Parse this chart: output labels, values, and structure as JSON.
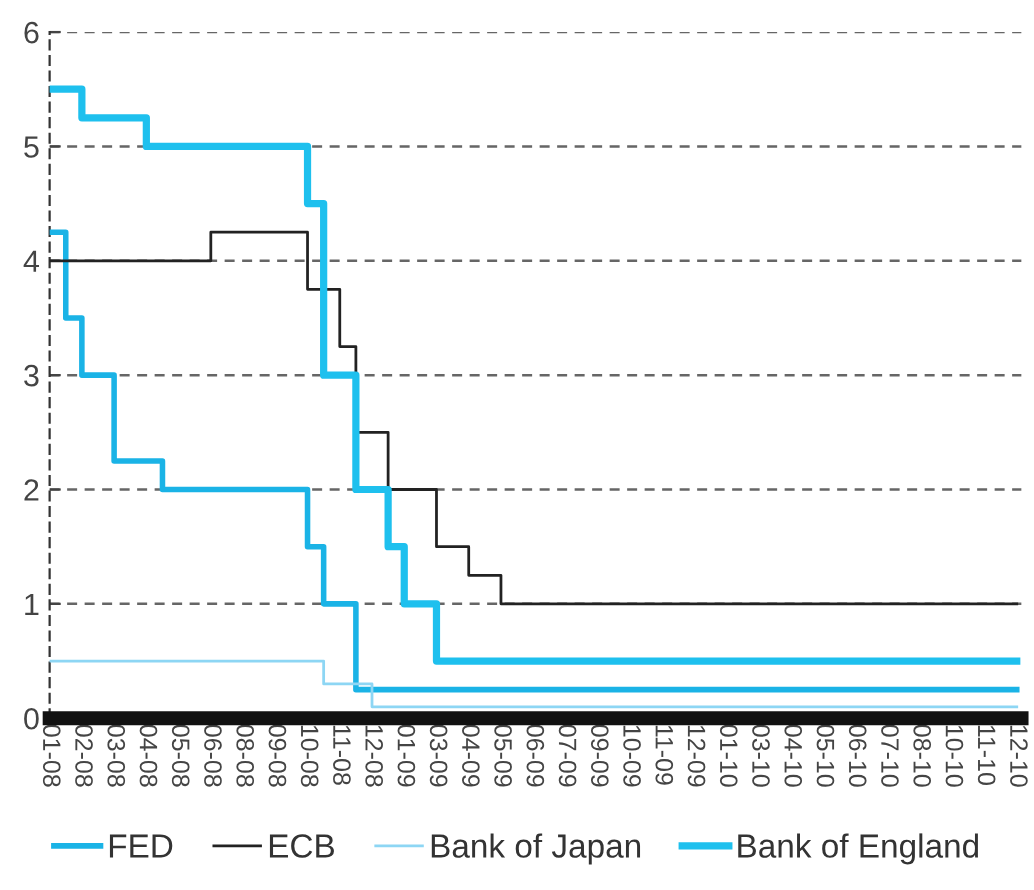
{
  "chart_data": {
    "type": "step",
    "categories": [
      "01-08",
      null,
      "02-08",
      null,
      "03-08",
      null,
      "04-08",
      null,
      "05-08",
      null,
      "06-08",
      null,
      "08-08",
      null,
      "09-08",
      null,
      "10-08",
      null,
      "11-08",
      null,
      "12-08",
      null,
      "01-09",
      null,
      "03-09",
      null,
      "04-09",
      null,
      "05-09",
      null,
      "06-09",
      null,
      "07-09",
      null,
      "09-09",
      null,
      "10-09",
      null,
      "11-09",
      null,
      "12-09",
      null,
      "01-10",
      null,
      "03-10",
      null,
      "04-10",
      null,
      "05-10",
      null,
      "06-10",
      null,
      "07-10",
      null,
      "08-10",
      null,
      "10-10",
      null,
      "11-10",
      null,
      "12-10"
    ],
    "series": [
      {
        "name": "FED",
        "color": "#1ab3e6",
        "values": [
          4.25,
          3.5,
          3.0,
          3.0,
          2.25,
          2.25,
          2.25,
          2.0,
          2.0,
          2.0,
          2.0,
          2.0,
          2.0,
          2.0,
          2.0,
          2.0,
          1.5,
          1.0,
          1.0,
          0.25,
          0.25,
          0.25,
          0.25,
          0.25,
          0.25,
          0.25,
          0.25,
          0.25,
          0.25,
          0.25,
          0.25,
          0.25,
          0.25,
          0.25,
          0.25,
          0.25,
          0.25,
          0.25,
          0.25,
          0.25,
          0.25,
          0.25,
          0.25,
          0.25,
          0.25,
          0.25,
          0.25,
          0.25,
          0.25,
          0.25,
          0.25,
          0.25,
          0.25,
          0.25,
          0.25,
          0.25,
          0.25,
          0.25,
          0.25,
          0.25,
          0.25
        ]
      },
      {
        "name": "ECB",
        "color": "#222222",
        "values": [
          4.0,
          4.0,
          4.0,
          4.0,
          4.0,
          4.0,
          4.0,
          4.0,
          4.0,
          4.0,
          4.25,
          4.25,
          4.25,
          4.25,
          4.25,
          4.25,
          3.75,
          3.75,
          3.25,
          2.5,
          2.5,
          2.0,
          2.0,
          2.0,
          1.5,
          1.5,
          1.25,
          1.25,
          1.0,
          1.0,
          1.0,
          1.0,
          1.0,
          1.0,
          1.0,
          1.0,
          1.0,
          1.0,
          1.0,
          1.0,
          1.0,
          1.0,
          1.0,
          1.0,
          1.0,
          1.0,
          1.0,
          1.0,
          1.0,
          1.0,
          1.0,
          1.0,
          1.0,
          1.0,
          1.0,
          1.0,
          1.0,
          1.0,
          1.0,
          1.0,
          1.0
        ]
      },
      {
        "name": "Bank of Japan",
        "color": "#8dd6f4",
        "values": [
          0.5,
          0.5,
          0.5,
          0.5,
          0.5,
          0.5,
          0.5,
          0.5,
          0.5,
          0.5,
          0.5,
          0.5,
          0.5,
          0.5,
          0.5,
          0.5,
          0.5,
          0.3,
          0.3,
          0.3,
          0.1,
          0.1,
          0.1,
          0.1,
          0.1,
          0.1,
          0.1,
          0.1,
          0.1,
          0.1,
          0.1,
          0.1,
          0.1,
          0.1,
          0.1,
          0.1,
          0.1,
          0.1,
          0.1,
          0.1,
          0.1,
          0.1,
          0.1,
          0.1,
          0.1,
          0.1,
          0.1,
          0.1,
          0.1,
          0.1,
          0.1,
          0.1,
          0.1,
          0.1,
          0.1,
          0.1,
          0.1,
          0.1,
          0.1,
          0.1,
          0.1
        ]
      },
      {
        "name": "Bank of England",
        "color": "#1ec0ee",
        "values": [
          5.5,
          5.5,
          5.25,
          5.25,
          5.25,
          5.25,
          5.0,
          5.0,
          5.0,
          5.0,
          5.0,
          5.0,
          5.0,
          5.0,
          5.0,
          5.0,
          4.5,
          3.0,
          3.0,
          2.0,
          2.0,
          1.5,
          1.0,
          1.0,
          0.5,
          0.5,
          0.5,
          0.5,
          0.5,
          0.5,
          0.5,
          0.5,
          0.5,
          0.5,
          0.5,
          0.5,
          0.5,
          0.5,
          0.5,
          0.5,
          0.5,
          0.5,
          0.5,
          0.5,
          0.5,
          0.5,
          0.5,
          0.5,
          0.5,
          0.5,
          0.5,
          0.5,
          0.5,
          0.5,
          0.5,
          0.5,
          0.5,
          0.5,
          0.5,
          0.5,
          0.5
        ]
      }
    ],
    "ylim": [
      0,
      6
    ],
    "yticks": [
      0,
      1,
      2,
      3,
      4,
      5,
      6
    ],
    "grid": "y",
    "legend": "bottom",
    "line_style": "solid",
    "marker": "none"
  }
}
